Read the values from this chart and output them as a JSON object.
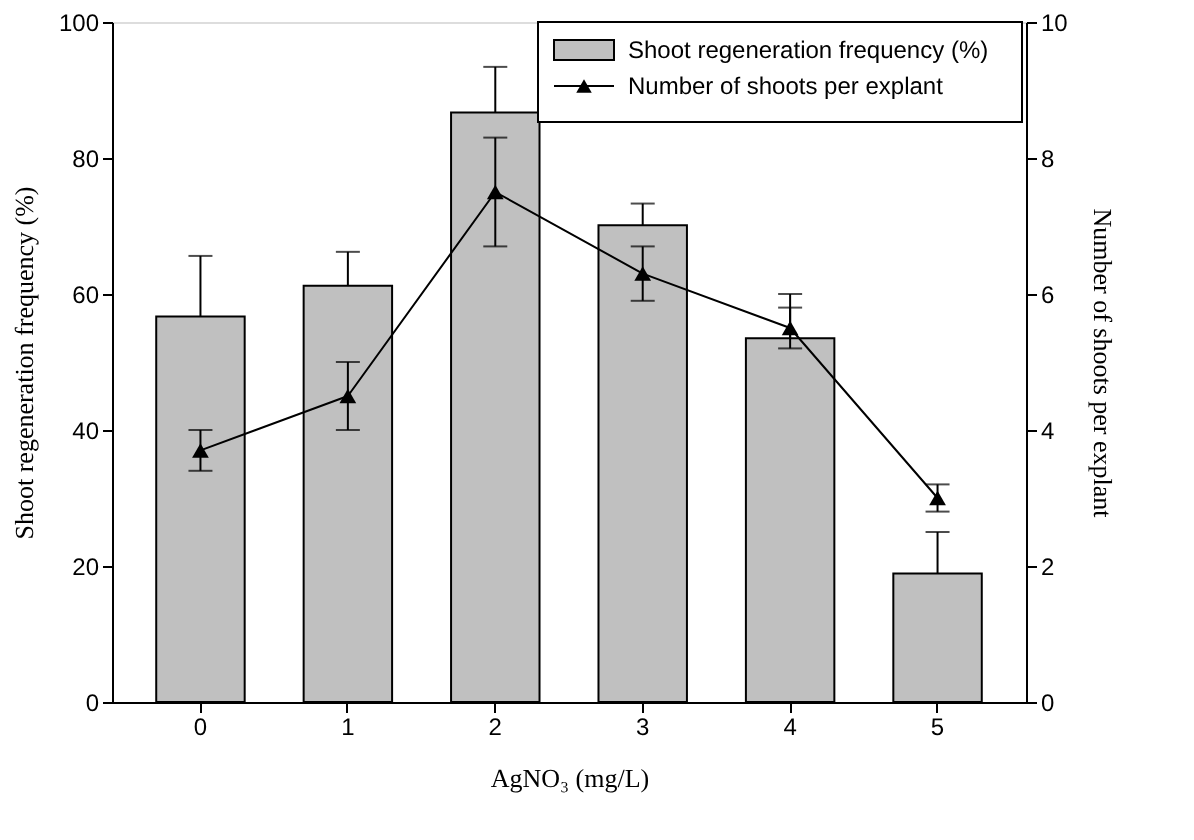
{
  "chart_data": {
    "type": "bar",
    "xlabel": "AgNO₃ (mg/L)",
    "ylabel": "Shoot regeneration frequency (%)",
    "y2label": "Number of shoots per explant",
    "categories": [
      "0",
      "1",
      "2",
      "3",
      "4",
      "5"
    ],
    "series": [
      {
        "name": "Shoot regeneration frequency (%)",
        "color": "#c0c0c0",
        "values": [
          56.7,
          61.2,
          86.7,
          70.1,
          53.5,
          18.9
        ],
        "errors": [
          [
            56.7,
            65.6
          ],
          [
            61.2,
            66.2
          ],
          [
            86.7,
            93.4
          ],
          [
            70.1,
            73.3
          ],
          [
            53.5,
            60.0
          ],
          [
            18.9,
            25.0
          ]
        ]
      },
      {
        "name": "Number of shoots per explant",
        "type": "line",
        "axis": "y2",
        "color": "#000000",
        "marker": "triangle",
        "line_style": "solid",
        "values": [
          3.7,
          4.5,
          7.5,
          6.3,
          5.5,
          3.0
        ],
        "errors": [
          0.3,
          0.5,
          0.8,
          0.4,
          0.3,
          0.2
        ]
      }
    ],
    "ylim": [
      0,
      100
    ],
    "yticks": [
      0,
      20,
      40,
      60,
      80,
      100
    ],
    "y2lim": [
      0,
      10
    ],
    "y2ticks": [
      0,
      2,
      4,
      6,
      8,
      10
    ],
    "grid": false,
    "legend": "top right"
  }
}
